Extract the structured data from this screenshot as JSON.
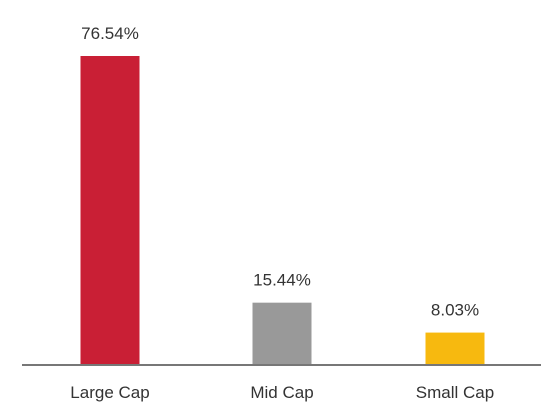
{
  "chart_data": {
    "type": "bar",
    "categories": [
      "Large Cap",
      "Mid Cap",
      "Small Cap"
    ],
    "values": [
      76.54,
      15.44,
      8.03
    ],
    "value_labels": [
      "76.54%",
      "15.44%",
      "8.03%"
    ],
    "bar_colors": [
      "#c91f35",
      "#999999",
      "#f7b90f"
    ],
    "axis_color": "#777777",
    "ylim": [
      0,
      76.54
    ],
    "grid": false,
    "legend": "none"
  }
}
